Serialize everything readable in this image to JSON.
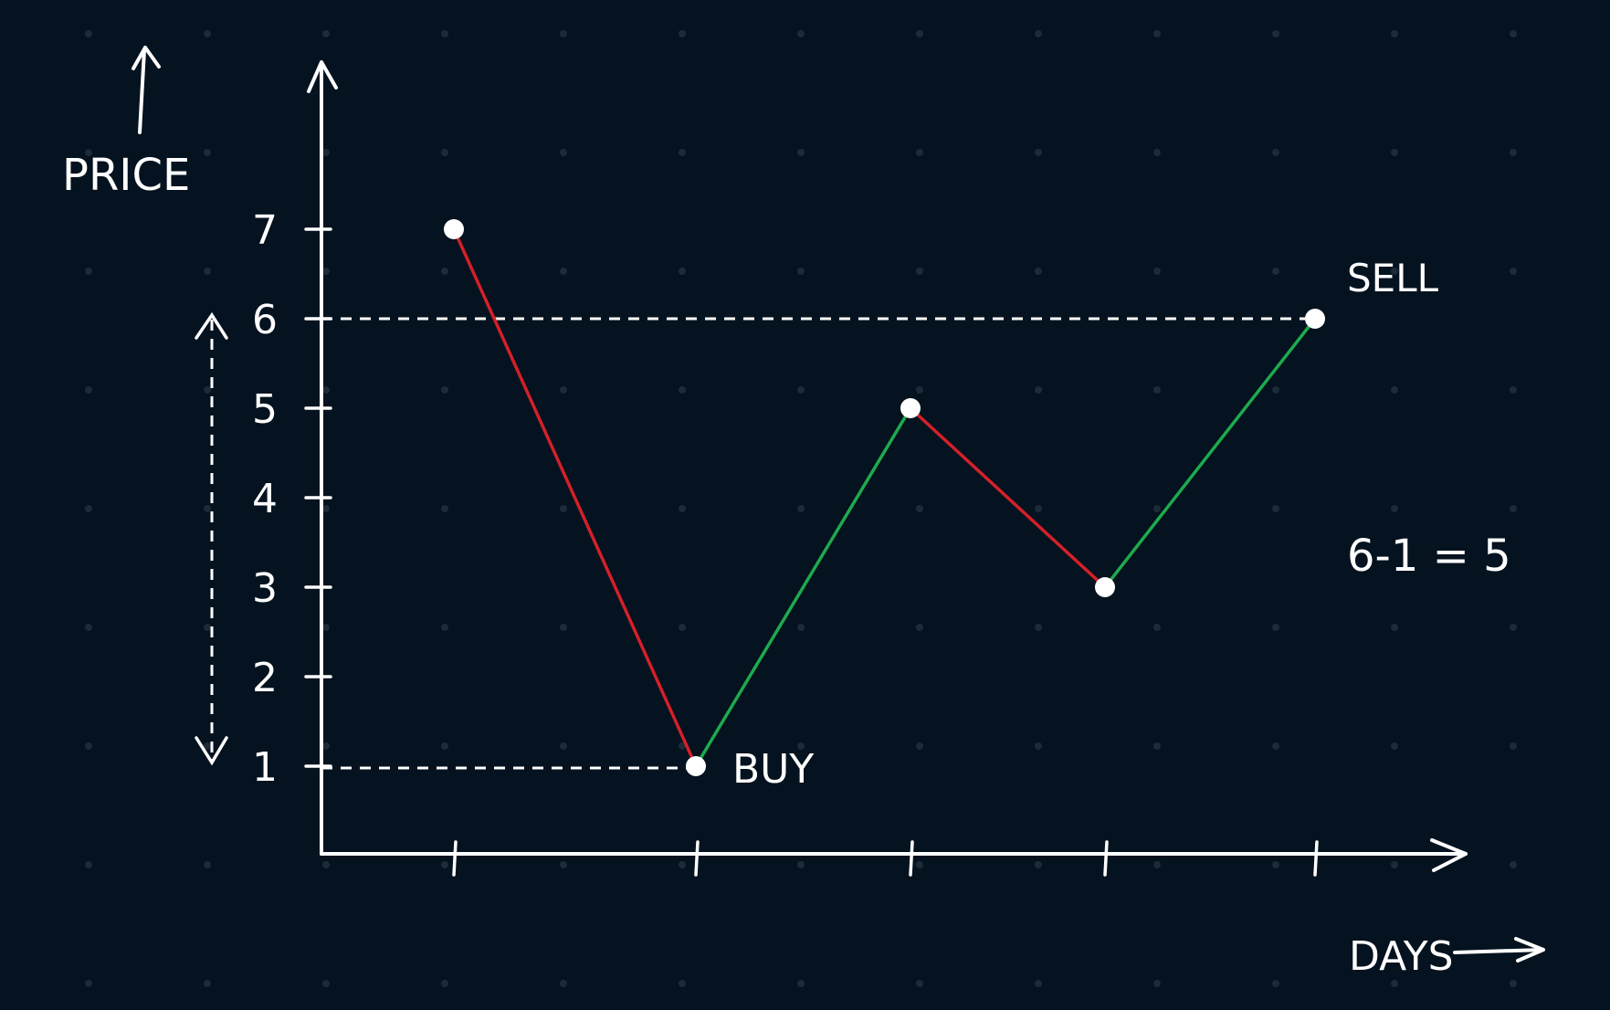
{
  "chart_data": {
    "type": "line",
    "xlabel": "DAYS",
    "ylabel": "PRICE",
    "x": [
      1,
      2,
      3,
      4,
      5
    ],
    "values": [
      7,
      1,
      5,
      3,
      6
    ],
    "xlim": [
      0,
      5.5
    ],
    "ylim": [
      0,
      8
    ],
    "yticks": [
      1,
      2,
      3,
      4,
      5,
      6,
      7
    ],
    "xticks": [
      1,
      2,
      3,
      4,
      5
    ],
    "annotations": [
      {
        "text": "BUY",
        "x": 2,
        "y": 1
      },
      {
        "text": "SELL",
        "x": 5,
        "y": 6
      },
      {
        "text": "6-1 = 5"
      }
    ],
    "grid": "dots",
    "colors": {
      "background": "#05121f",
      "up": "#1eaa4c",
      "down": "#d4202a",
      "ink": "#ffffff",
      "grid_dot": "#1d2a38"
    }
  }
}
